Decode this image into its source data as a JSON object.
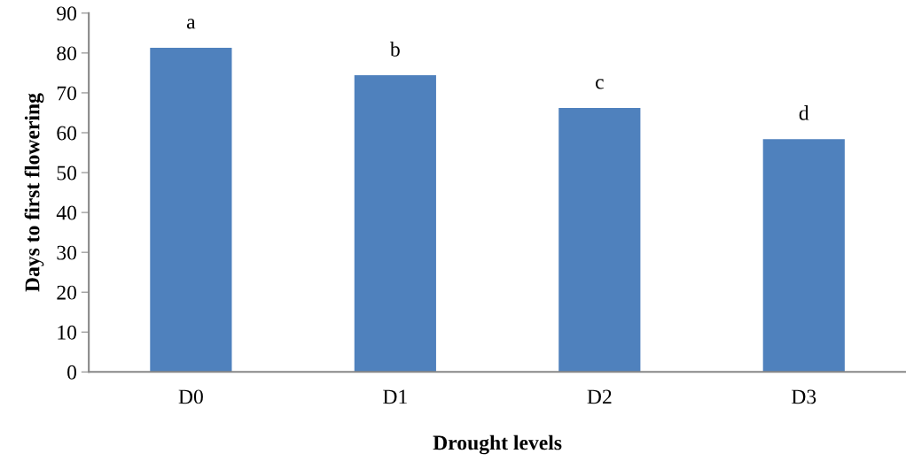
{
  "chart_data": {
    "type": "bar",
    "xlabel": "Drought levels",
    "ylabel": "Days to first flowering",
    "categories": [
      "D0",
      "D1",
      "D2",
      "D3"
    ],
    "values": [
      81.3,
      74.4,
      66.2,
      58.4
    ],
    "color": "#4f81bd",
    "ylim": [
      0,
      90
    ],
    "yticks": [
      0,
      10,
      20,
      30,
      40,
      50,
      60,
      70,
      80,
      90
    ],
    "grid": false,
    "legend": false,
    "annotations": [
      {
        "text": "a",
        "x": "D0",
        "y": 81.3
      },
      {
        "text": "b",
        "x": "D1",
        "y": 74.4
      },
      {
        "text": "c",
        "x": "D2",
        "y": 66.2
      },
      {
        "text": "d",
        "x": "D3",
        "y": 58.4
      }
    ]
  }
}
